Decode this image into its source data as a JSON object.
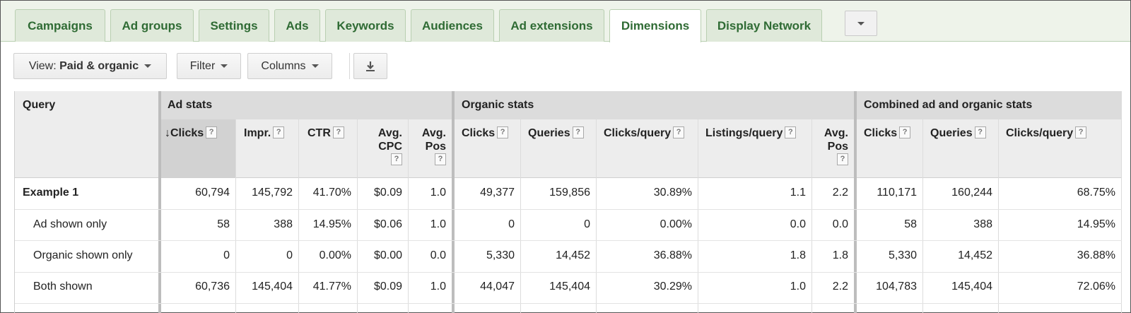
{
  "tabs": [
    {
      "label": "Campaigns",
      "active": false
    },
    {
      "label": "Ad groups",
      "active": false
    },
    {
      "label": "Settings",
      "active": false
    },
    {
      "label": "Ads",
      "active": false
    },
    {
      "label": "Keywords",
      "active": false
    },
    {
      "label": "Audiences",
      "active": false
    },
    {
      "label": "Ad extensions",
      "active": false
    },
    {
      "label": "Dimensions",
      "active": true
    },
    {
      "label": "Display Network",
      "active": false
    }
  ],
  "toolbar": {
    "view_prefix": "View:",
    "view_value": "Paid & organic",
    "filter_label": "Filter",
    "columns_label": "Columns"
  },
  "table": {
    "query_header": "Query",
    "groups": {
      "ad_stats": "Ad stats",
      "organic_stats": "Organic stats",
      "combined": "Combined ad and organic stats"
    },
    "columns": {
      "ad_clicks": "Clicks",
      "ad_impr": "Impr.",
      "ad_ctr": "CTR",
      "ad_avg_cpc_1": "Avg.",
      "ad_avg_cpc_2": "CPC",
      "ad_avg_pos_1": "Avg.",
      "ad_avg_pos_2": "Pos",
      "org_clicks": "Clicks",
      "org_queries": "Queries",
      "org_cpq": "Clicks/query",
      "org_lpq": "Listings/query",
      "org_avg_pos_1": "Avg.",
      "org_avg_pos_2": "Pos",
      "comb_clicks": "Clicks",
      "comb_queries": "Queries",
      "comb_cpq": "Clicks/query"
    },
    "help_glyph": "?",
    "sort_glyph": "↓",
    "rows": [
      {
        "query": "Example 1",
        "cells": [
          "60,794",
          "145,792",
          "41.70%",
          "$0.09",
          "1.0",
          "49,377",
          "159,856",
          "30.89%",
          "1.1",
          "2.2",
          "110,171",
          "160,244",
          "68.75%"
        ]
      },
      {
        "query": "Ad shown only",
        "cells": [
          "58",
          "388",
          "14.95%",
          "$0.06",
          "1.0",
          "0",
          "0",
          "0.00%",
          "0.0",
          "0.0",
          "58",
          "388",
          "14.95%"
        ]
      },
      {
        "query": "Organic shown only",
        "cells": [
          "0",
          "0",
          "0.00%",
          "$0.00",
          "0.0",
          "5,330",
          "14,452",
          "36.88%",
          "1.8",
          "1.8",
          "5,330",
          "14,452",
          "36.88%"
        ]
      },
      {
        "query": "Both shown",
        "cells": [
          "60,736",
          "145,404",
          "41.77%",
          "$0.09",
          "1.0",
          "44,047",
          "145,404",
          "30.29%",
          "1.0",
          "2.2",
          "104,783",
          "145,404",
          "72.06%"
        ]
      }
    ]
  }
}
